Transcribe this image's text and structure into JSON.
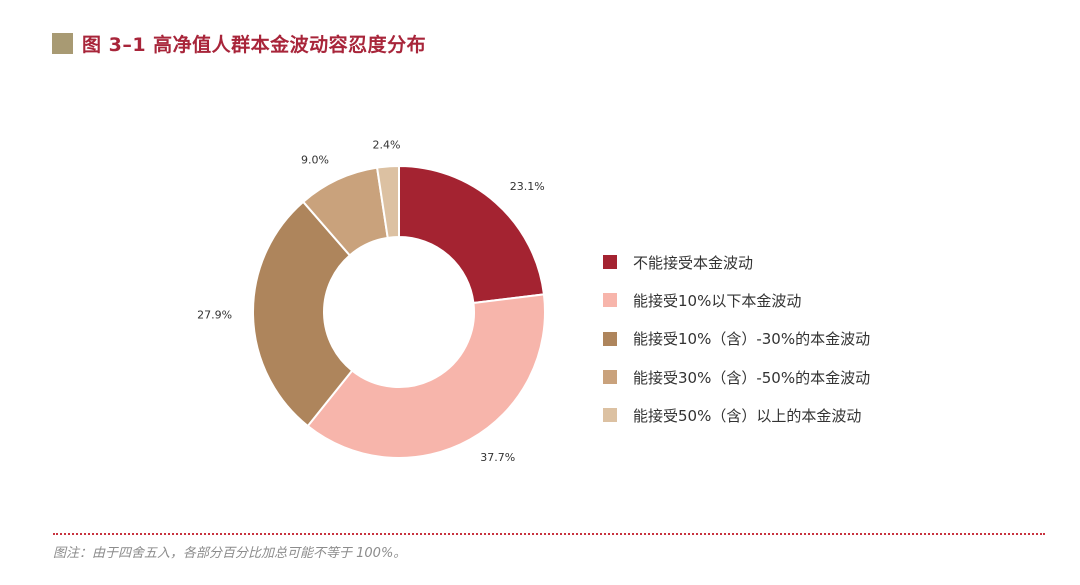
{
  "title": "图 3–1  高净值人群本金波动容忍度分布",
  "footnote": "图注：由于四舍五入，各部分百分比加总可能不等于 100%。",
  "colors": {
    "title_marker": "#a89a73",
    "title_text": "#a8253a",
    "divider": "#c8333f"
  },
  "chart_data": {
    "type": "pie",
    "donut": true,
    "title": "高净值人群本金波动容忍度分布",
    "start_angle_deg": 0,
    "direction": "clockwise",
    "slices": [
      {
        "label": "不能接受本金波动",
        "value": 23.1,
        "value_label": "23.1%",
        "color": "#a42331"
      },
      {
        "label": "能接受10%以下本金波动",
        "value": 37.7,
        "value_label": "37.7%",
        "color": "#f7b5ab"
      },
      {
        "label": "能接受10%（含）-30%的本金波动",
        "value": 27.9,
        "value_label": "27.9%",
        "color": "#ae855c"
      },
      {
        "label": "能接受30%（含）-50%的本金波动",
        "value": 9.0,
        "value_label": "9.0%",
        "color": "#c9a27c"
      },
      {
        "label": "能接受50%（含）以上的本金波动",
        "value": 2.4,
        "value_label": "2.4%",
        "color": "#dcc1a2"
      }
    ],
    "legend_position": "right"
  }
}
